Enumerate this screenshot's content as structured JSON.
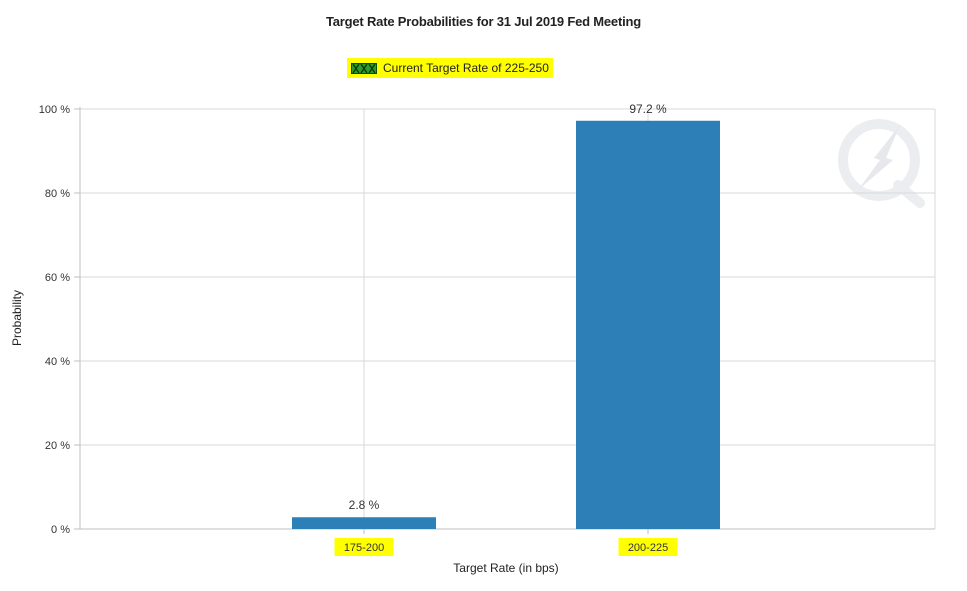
{
  "chart_data": {
    "type": "bar",
    "title": "Target Rate Probabilities for 31 Jul 2019 Fed Meeting",
    "legend": {
      "label": "Current Target Rate of 225-250",
      "highlight_color": "#ffff00",
      "swatch_color": "#2e9a2e"
    },
    "categories": [
      "175-200",
      "200-225"
    ],
    "values": [
      2.8,
      97.2
    ],
    "data_labels": [
      "2.8 %",
      "97.2 %"
    ],
    "xlabel": "Target Rate (in bps)",
    "ylabel": "Probability",
    "ylim": [
      0,
      100
    ],
    "yticks": [
      0,
      20,
      40,
      60,
      80,
      100
    ],
    "ytick_labels": [
      "0 %",
      "20 %",
      "40 %",
      "60 %",
      "80 %",
      "100 %"
    ],
    "highlighted_categories": true,
    "grid": true,
    "bar_color": "#2d7fb8",
    "grid_color": "#d9d9d9",
    "axis_color": "#bfbfbf",
    "category_highlight_color": "#ffff00",
    "watermark": "Q logo"
  }
}
